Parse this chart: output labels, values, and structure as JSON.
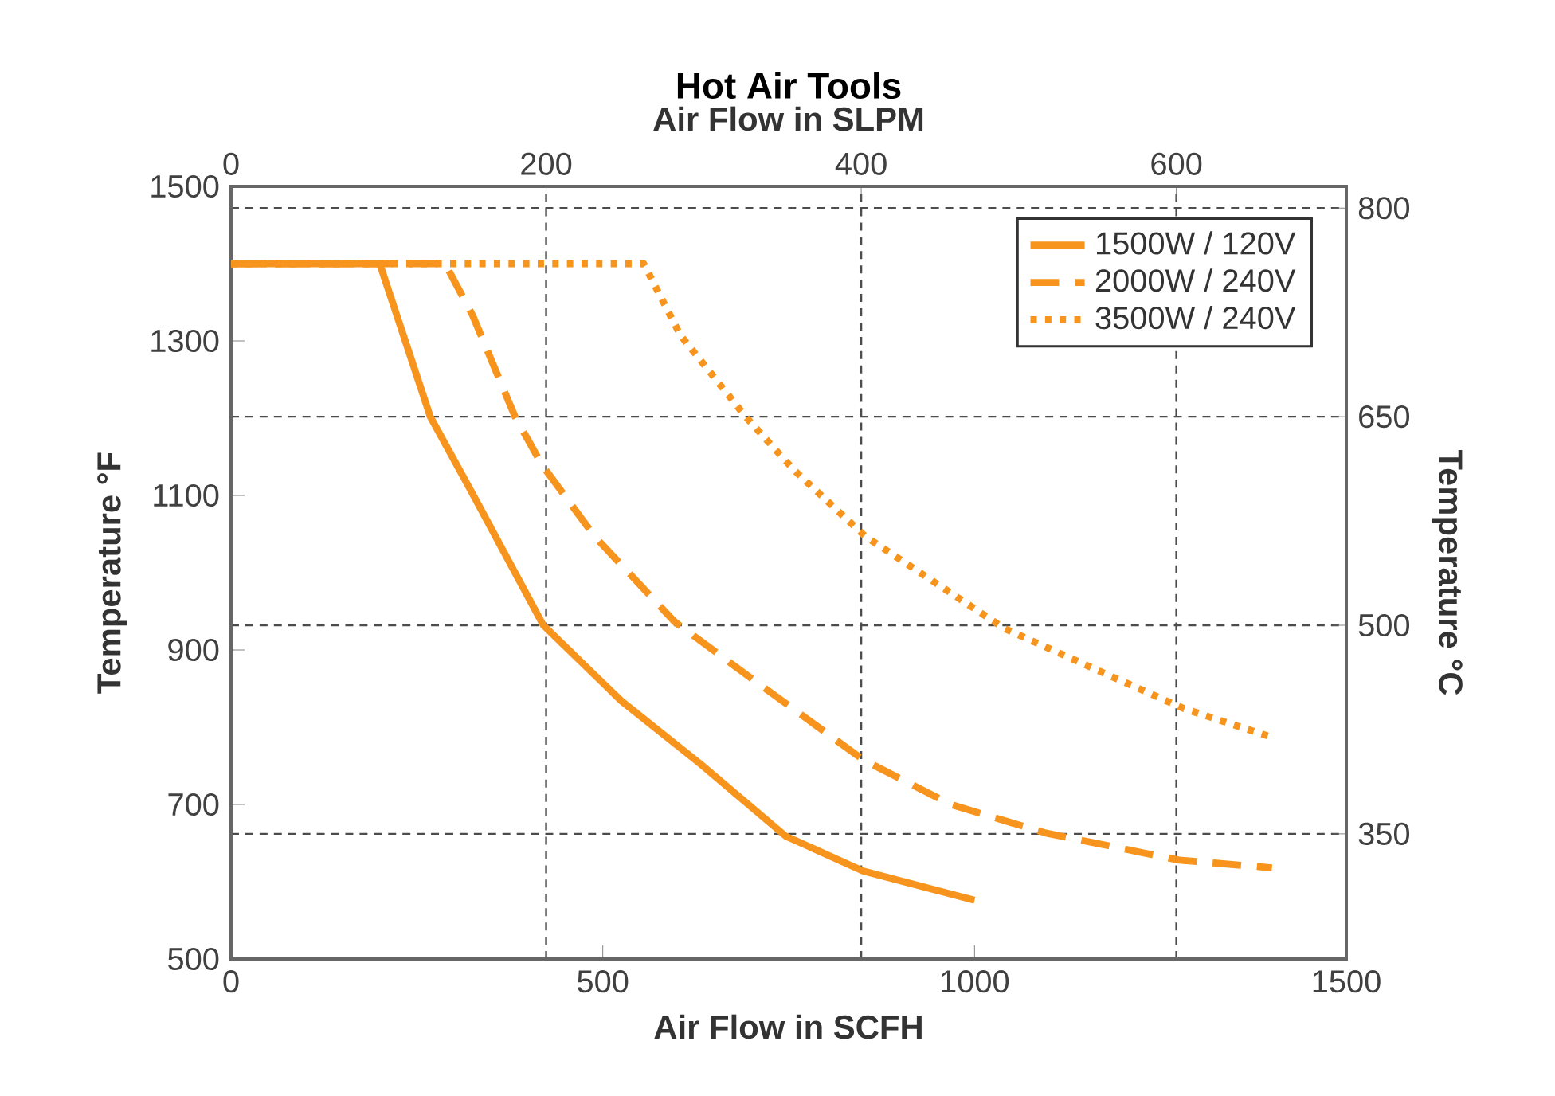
{
  "chart_data": {
    "type": "line",
    "title": "Hot Air Tools",
    "xlabel": "Air Flow in SCFH",
    "x2label": "Air Flow in SLPM",
    "ylabel": "Temperature °F",
    "y2label": "Temperature °C",
    "xlim": [
      0,
      1500
    ],
    "xticks": [
      0,
      500,
      1000,
      1500
    ],
    "x2lim": [
      0,
      707.9
    ],
    "x2ticks": [
      0,
      200,
      400,
      600
    ],
    "ylim": [
      500,
      1500
    ],
    "yticks": [
      500,
      700,
      900,
      1100,
      1300,
      1500
    ],
    "y2lim": [
      260,
      815.6
    ],
    "y2ticks": [
      350,
      500,
      650,
      800
    ],
    "grid": true,
    "legend": "top right",
    "series": [
      {
        "name": "1500W / 120V",
        "color": "#f7941d",
        "line_style": "solid",
        "x": [
          0,
          200,
          268,
          325,
          420,
          525,
          632,
          746,
          850,
          1000
        ],
        "values": [
          1400,
          1400,
          1202,
          1102,
          932,
          834,
          752,
          659,
          614,
          576
        ]
      },
      {
        "name": "2000W / 240V",
        "color": "#f7941d",
        "line_style": "dashed",
        "x": [
          0,
          288,
          325,
          382,
          418,
          489,
          596,
          703,
          850,
          968,
          1096,
          1275,
          1400
        ],
        "values": [
          1400,
          1400,
          1333,
          1202,
          1140,
          1047,
          937,
          861,
          758,
          700,
          663,
          628,
          618
        ]
      },
      {
        "name": "3500W / 240V",
        "color": "#f7941d",
        "line_style": "dotted",
        "x": [
          0,
          555,
          604,
          692,
          757,
          853,
          1040,
          1146,
          1282,
          1400
        ],
        "values": [
          1400,
          1400,
          1308,
          1202,
          1133,
          1047,
          928,
          882,
          824,
          787
        ]
      }
    ]
  }
}
